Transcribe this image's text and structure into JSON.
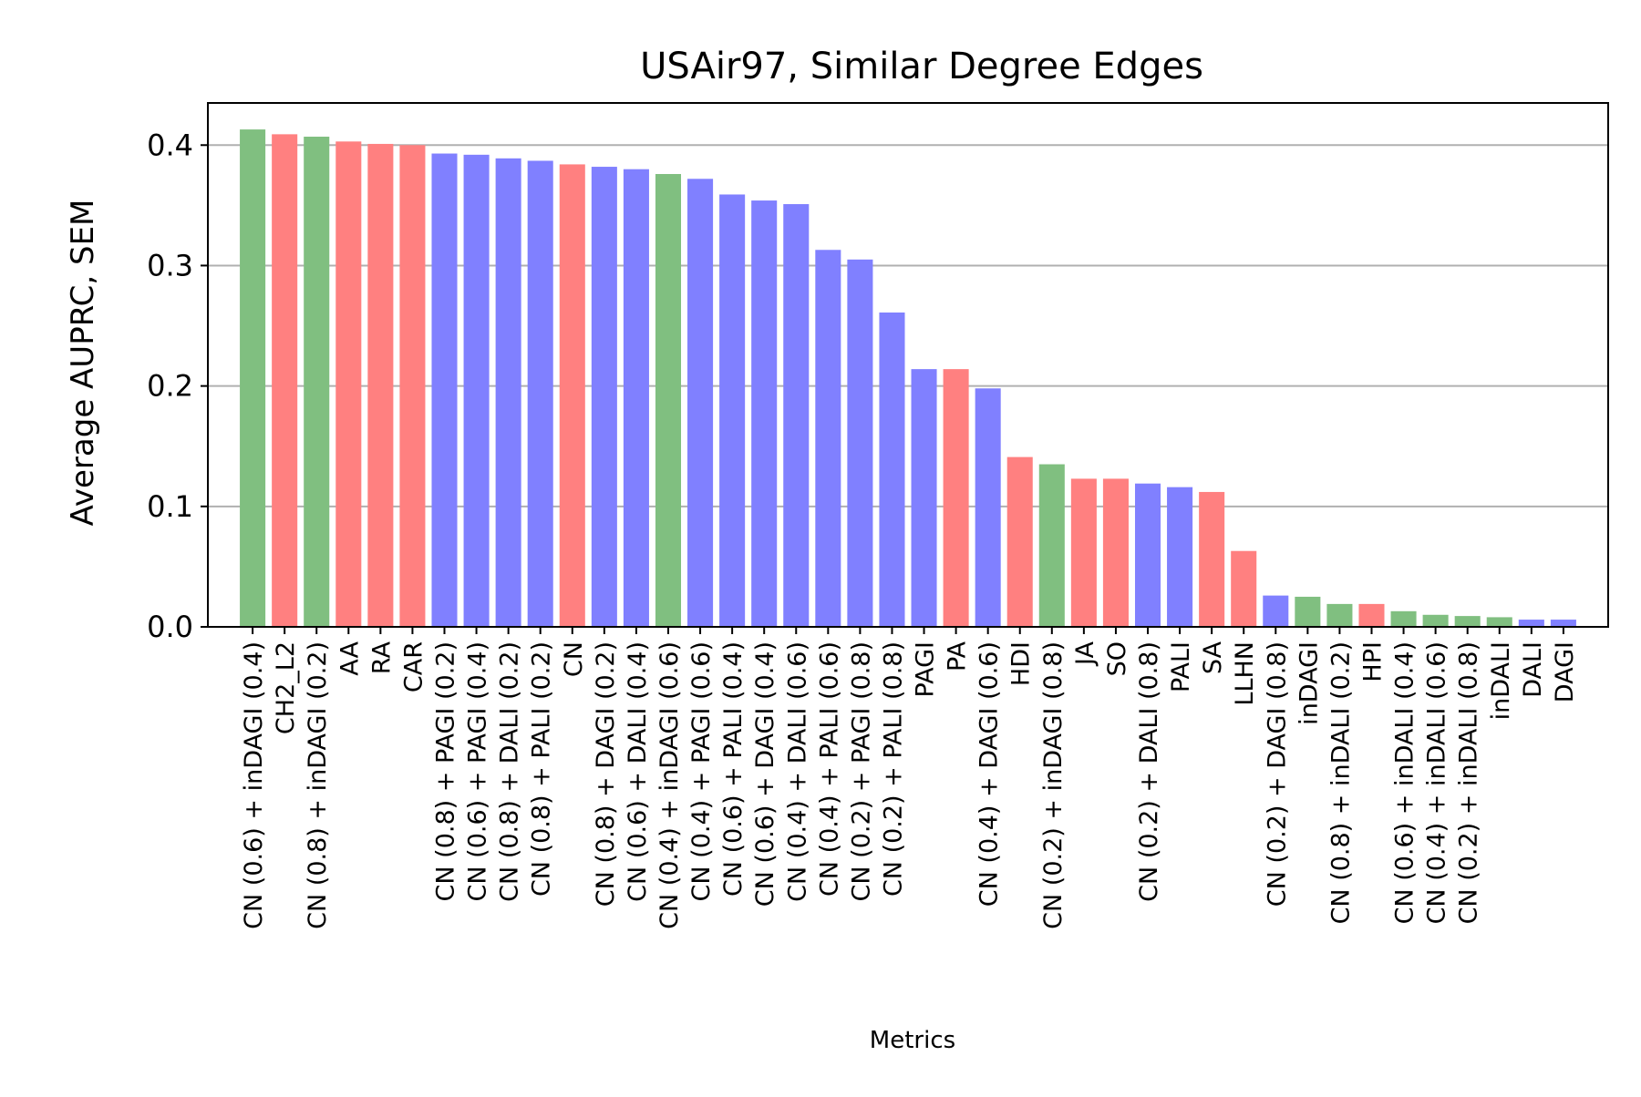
{
  "chart_data": {
    "type": "bar",
    "title": "USAir97, Similar Degree Edges",
    "xlabel": "Metrics",
    "ylabel": "Average AUPRC, SEM",
    "ylim": [
      0,
      0.435
    ],
    "yticks": [
      "0.0",
      "0.1",
      "0.2",
      "0.3",
      "0.4"
    ],
    "ytick_values": [
      0.0,
      0.1,
      0.2,
      0.3,
      0.4
    ],
    "grid": "y",
    "colors": {
      "green": "#80bf80",
      "red": "#ff8080",
      "blue": "#8080ff",
      "grid": "#b0b0b0",
      "axis": "#000000"
    },
    "categories": [
      "CN (0.6) + inDAGI (0.4)",
      "CH2_L2",
      "CN (0.8) + inDAGI (0.2)",
      "AA",
      "RA",
      "CAR",
      "CN (0.8) + PAGI (0.2)",
      "CN (0.6) + PAGI (0.4)",
      "CN (0.8) + DALI (0.2)",
      "CN (0.8) + PALI (0.2)",
      "CN",
      "CN (0.8) + DAGI (0.2)",
      "CN (0.6) + DALI (0.4)",
      "CN (0.4) + inDAGI (0.6)",
      "CN (0.4) + PAGI (0.6)",
      "CN (0.6) + PALI (0.4)",
      "CN (0.6) + DAGI (0.4)",
      "CN (0.4) + DALI (0.6)",
      "CN (0.4) + PALI (0.6)",
      "CN (0.2) + PAGI (0.8)",
      "CN (0.2) + PALI (0.8)",
      "PAGI",
      "PA",
      "CN (0.4) + DAGI (0.6)",
      "HDI",
      "CN (0.2) + inDAGI (0.8)",
      "JA",
      "SO",
      "CN (0.2) + DALI (0.8)",
      "PALI",
      "SA",
      "LLHN",
      "CN (0.2) + DAGI (0.8)",
      "inDAGI",
      "CN (0.8) + inDALI (0.2)",
      "HPI",
      "CN (0.6) + inDALI (0.4)",
      "CN (0.4) + inDALI (0.6)",
      "CN (0.2) + inDALI (0.8)",
      "inDALI",
      "DALI",
      "DAGI"
    ],
    "values": [
      0.413,
      0.409,
      0.407,
      0.403,
      0.401,
      0.4,
      0.393,
      0.392,
      0.389,
      0.387,
      0.384,
      0.382,
      0.38,
      0.376,
      0.372,
      0.359,
      0.354,
      0.351,
      0.313,
      0.305,
      0.261,
      0.214,
      0.214,
      0.198,
      0.141,
      0.135,
      0.123,
      0.123,
      0.119,
      0.116,
      0.112,
      0.063,
      0.026,
      0.025,
      0.019,
      0.019,
      0.013,
      0.01,
      0.009,
      0.008,
      0.006,
      0.006
    ],
    "bar_colors": [
      "green",
      "red",
      "green",
      "red",
      "red",
      "red",
      "blue",
      "blue",
      "blue",
      "blue",
      "red",
      "blue",
      "blue",
      "green",
      "blue",
      "blue",
      "blue",
      "blue",
      "blue",
      "blue",
      "blue",
      "blue",
      "red",
      "blue",
      "red",
      "green",
      "red",
      "red",
      "blue",
      "blue",
      "red",
      "red",
      "blue",
      "green",
      "green",
      "red",
      "green",
      "green",
      "green",
      "green",
      "blue",
      "blue"
    ]
  }
}
